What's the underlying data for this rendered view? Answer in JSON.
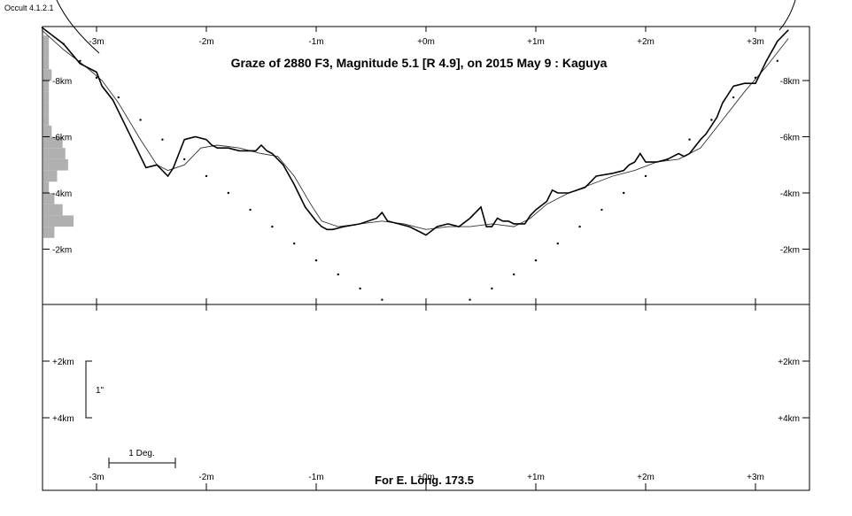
{
  "app": {
    "version_label": "Occult 4.1.2.1"
  },
  "chart_data": {
    "type": "line",
    "title": "Graze of  2880 F3,  Magnitude 5.1 [R 4.9],  on 2015 May  9  :  Kaguya",
    "footer": "For E. Long. 173.5",
    "x_tick_labels": [
      "-3m",
      "-2m",
      "-1m",
      "+0m",
      "+1m",
      "+2m",
      "+3m"
    ],
    "x_ticks": [
      -3,
      -2,
      -1,
      0,
      1,
      2,
      3
    ],
    "xlim": [
      -3.5,
      3.5
    ],
    "y_tick_labels": [
      "-8km",
      "-6km",
      "-4km",
      "-2km"
    ],
    "y_ticks": [
      -8,
      -6,
      -4,
      -2
    ],
    "ylim": [
      -9.8,
      0
    ],
    "lower_panel": {
      "y_tick_labels": [
        "+2km",
        "+4km"
      ],
      "y_ticks": [
        2,
        4
      ],
      "scale_bar_label": "1\"",
      "scale_bar_km": [
        2,
        4
      ],
      "degree_bar_label": "1 Deg."
    },
    "series": [
      {
        "role": "limb-profile",
        "x": [
          -3.5,
          -3.3,
          -3.15,
          -3.0,
          -2.95,
          -2.85,
          -2.7,
          -2.6,
          -2.55,
          -2.45,
          -2.35,
          -2.3,
          -2.25,
          -2.2,
          -2.1,
          -2.0,
          -1.95,
          -1.9,
          -1.8,
          -1.7,
          -1.55,
          -1.5,
          -1.45,
          -1.4,
          -1.3,
          -1.2,
          -1.1,
          -1.0,
          -0.95,
          -0.9,
          -0.85,
          -0.75,
          -0.6,
          -0.45,
          -0.4,
          -0.35,
          -0.25,
          -0.15,
          -0.05,
          0.0,
          0.1,
          0.2,
          0.3,
          0.4,
          0.5,
          0.55,
          0.6,
          0.65,
          0.7,
          0.75,
          0.8,
          0.9,
          0.95,
          1.0,
          1.1,
          1.15,
          1.2,
          1.3,
          1.45,
          1.55,
          1.7,
          1.8,
          1.85,
          1.9,
          1.95,
          2.0,
          2.1,
          2.2,
          2.3,
          2.35,
          2.4,
          2.5,
          2.55,
          2.6,
          2.65,
          2.7,
          2.8,
          2.9,
          3.0,
          3.1,
          3.2,
          3.3
        ],
        "y": [
          -9.9,
          -9.3,
          -8.6,
          -8.3,
          -7.8,
          -7.3,
          -6.1,
          -5.3,
          -4.9,
          -5.0,
          -4.6,
          -4.9,
          -5.4,
          -5.9,
          -6.0,
          -5.9,
          -5.7,
          -5.6,
          -5.6,
          -5.5,
          -5.5,
          -5.7,
          -5.5,
          -5.4,
          -5.0,
          -4.3,
          -3.5,
          -3.0,
          -2.8,
          -2.7,
          -2.7,
          -2.8,
          -2.9,
          -3.1,
          -3.3,
          -3.0,
          -2.9,
          -2.8,
          -2.6,
          -2.5,
          -2.8,
          -2.9,
          -2.8,
          -3.1,
          -3.5,
          -2.8,
          -2.8,
          -3.1,
          -3.0,
          -3.0,
          -2.9,
          -2.9,
          -3.2,
          -3.4,
          -3.7,
          -4.1,
          -4.0,
          -4.0,
          -4.2,
          -4.6,
          -4.7,
          -4.8,
          -5.0,
          -5.1,
          -5.4,
          -5.1,
          -5.1,
          -5.2,
          -5.4,
          -5.3,
          -5.4,
          -5.9,
          -6.1,
          -6.4,
          -6.7,
          -7.2,
          -7.8,
          -7.9,
          -7.9,
          -8.7,
          -9.4,
          -9.8
        ]
      },
      {
        "role": "smoothed-profile",
        "x": [
          -3.5,
          -3.3,
          -3.1,
          -2.95,
          -2.8,
          -2.6,
          -2.45,
          -2.35,
          -2.2,
          -2.05,
          -1.9,
          -1.7,
          -1.5,
          -1.35,
          -1.2,
          -1.05,
          -0.95,
          -0.8,
          -0.6,
          -0.4,
          -0.2,
          0.0,
          0.2,
          0.4,
          0.6,
          0.8,
          0.95,
          1.1,
          1.3,
          1.5,
          1.7,
          1.9,
          2.1,
          2.3,
          2.5,
          2.7,
          2.9,
          3.1,
          3.3
        ],
        "y": [
          -9.8,
          -9.1,
          -8.5,
          -8.0,
          -7.2,
          -5.9,
          -5.0,
          -4.8,
          -5.0,
          -5.6,
          -5.7,
          -5.6,
          -5.4,
          -5.3,
          -4.6,
          -3.6,
          -3.0,
          -2.8,
          -2.9,
          -3.0,
          -2.9,
          -2.7,
          -2.8,
          -2.8,
          -2.9,
          -2.8,
          -3.1,
          -3.6,
          -4.0,
          -4.3,
          -4.6,
          -4.8,
          -5.1,
          -5.2,
          -5.6,
          -6.6,
          -7.6,
          -8.5,
          -9.5
        ]
      },
      {
        "role": "dotted-limit",
        "x": [
          -3.3,
          -3.15,
          -3.0,
          -2.8,
          -2.6,
          -2.4,
          -2.2,
          -2.0,
          -1.8,
          -1.6,
          -1.4,
          -1.2,
          -1.0,
          -0.8,
          -0.6,
          -0.4,
          0.4,
          0.6,
          0.8,
          1.0,
          1.2,
          1.4,
          1.6,
          1.8,
          2.0,
          2.2,
          2.4,
          2.6,
          2.8,
          3.0,
          3.2
        ],
        "y": [
          -9.3,
          -8.7,
          -8.1,
          -7.4,
          -6.6,
          -5.9,
          -5.2,
          -4.6,
          -4.0,
          -3.4,
          -2.8,
          -2.2,
          -1.6,
          -1.1,
          -0.6,
          -0.2,
          -0.2,
          -0.6,
          -1.1,
          -1.6,
          -2.2,
          -2.8,
          -3.4,
          -4.0,
          -4.6,
          -5.2,
          -5.9,
          -6.6,
          -7.4,
          -8.1,
          -8.7
        ]
      }
    ],
    "histogram": {
      "y": [
        -9.4,
        -9.0,
        -8.6,
        -8.2,
        -7.8,
        -7.4,
        -7.0,
        -6.6,
        -6.2,
        -5.8,
        -5.4,
        -5.0,
        -4.6,
        -4.2,
        -3.8,
        -3.4,
        -3.0,
        -2.6
      ],
      "values": [
        2,
        2,
        2,
        3,
        2,
        2,
        2,
        2,
        3,
        7,
        8,
        9,
        5,
        2,
        4,
        7,
        11,
        4
      ]
    },
    "grid": false
  }
}
